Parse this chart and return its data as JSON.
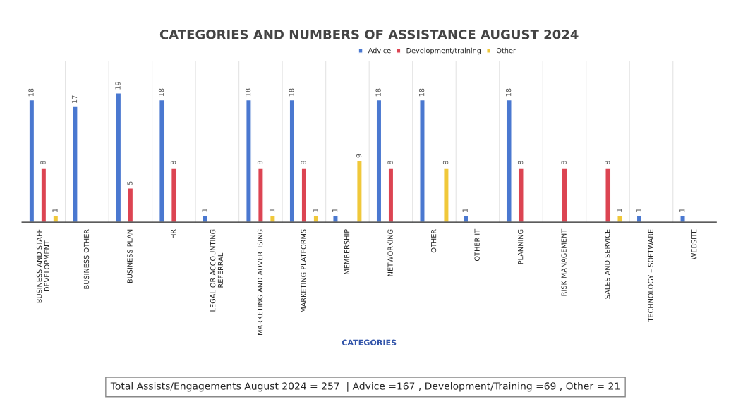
{
  "chart_data": {
    "type": "bar",
    "title": "CATEGORIES AND NUMBERS OF ASSISTANCE AUGUST 2024",
    "xlabel": "CATEGORIES",
    "categories": [
      "BUSINESS AND STAFF\nDEVELOPMENT",
      "BUSINESS OTHER",
      "BUSINESS PLAN",
      "HR",
      "LEGAL OR ACCOUNTING\nREFERRAL",
      "MARKETING AND ADVERTISING",
      "MARKETING PLATFORMS",
      "MEMBERSHIP",
      "NETWORKING",
      "OTHER",
      "OTHER IT",
      "PLANNING",
      "RISK MANAGEMENT",
      "SALES AND SERVICE",
      "TECHNOLOGY – SOFTWARE",
      "WEBSITE"
    ],
    "series": [
      {
        "name": "Advice",
        "color": "#4a78d0",
        "values": [
          18,
          17,
          19,
          18,
          1,
          18,
          18,
          1,
          18,
          18,
          1,
          18,
          null,
          null,
          1,
          1
        ]
      },
      {
        "name": "Development/training",
        "color": "#dc4452",
        "values": [
          8,
          null,
          5,
          8,
          null,
          8,
          8,
          null,
          8,
          null,
          null,
          8,
          8,
          8,
          null,
          null
        ]
      },
      {
        "name": "Other",
        "color": "#f0c83a",
        "values": [
          1,
          null,
          null,
          null,
          null,
          1,
          1,
          9,
          null,
          8,
          null,
          null,
          null,
          1,
          null,
          null
        ]
      }
    ],
    "data_labels": true,
    "legend": "top right",
    "annotations": [
      "Total Assists/Engagements August 2024 = 257  | Advice =167 , Development/Training =69 , Other = 21"
    ]
  }
}
